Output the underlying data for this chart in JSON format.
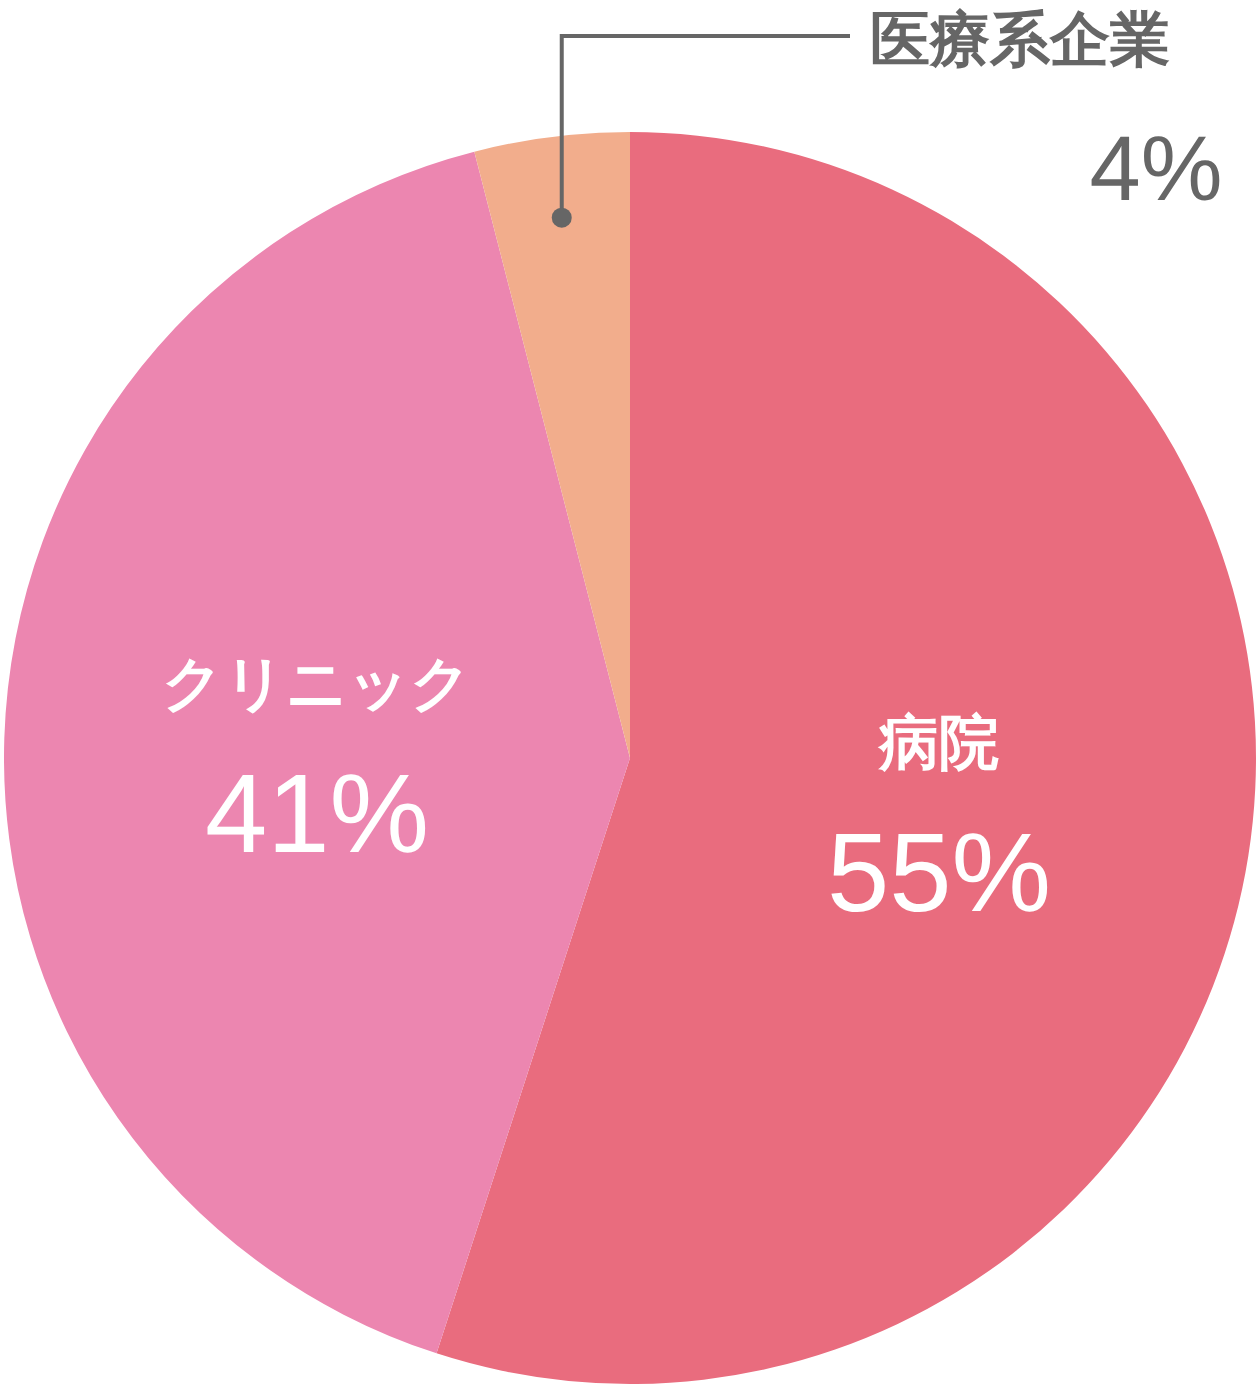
{
  "chart_data": {
    "type": "pie",
    "categories": [
      "病院",
      "クリニック",
      "医療系企業"
    ],
    "values": [
      55,
      41,
      4
    ],
    "colors": [
      "#e96c7e",
      "#ec86b0",
      "#f2ad8c"
    ],
    "value_labels": [
      "55%",
      "41%",
      "4%"
    ]
  }
}
